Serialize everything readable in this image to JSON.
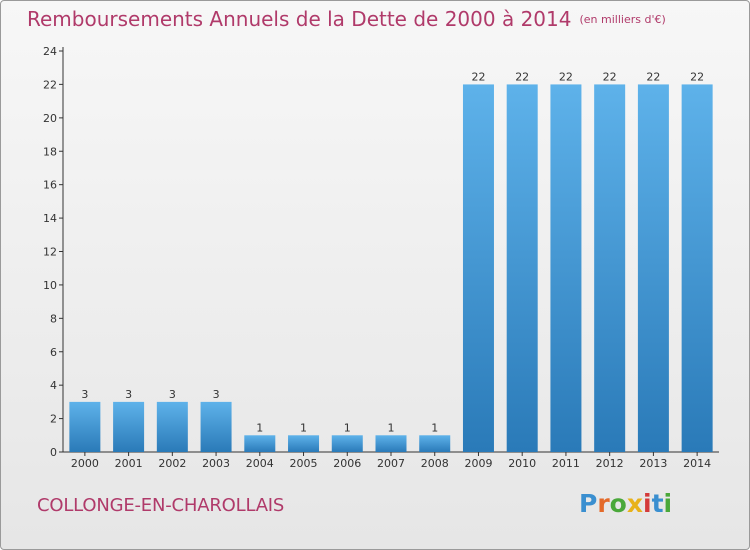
{
  "header": {
    "title": "Remboursements Annuels de la Dette de 2000 à 2014",
    "unit": "(en milliers d'€)"
  },
  "footer": {
    "commune": "COLLONGE-EN-CHAROLLAIS",
    "logo_text": "Proxiti"
  },
  "colors": {
    "title": "#b03a6a",
    "bar_light": "#5eb2ea",
    "bar_dark": "#2a7ab8",
    "logo_letters": [
      "#3a8fd0",
      "#e46a2a",
      "#4aa83a",
      "#e8b21a",
      "#d43a3a",
      "#3a8fd0",
      "#4aa83a"
    ]
  },
  "chart_data": {
    "type": "bar",
    "title": "Remboursements Annuels de la Dette de 2000 à 2014",
    "categories": [
      "2000",
      "2001",
      "2002",
      "2003",
      "2004",
      "2005",
      "2006",
      "2007",
      "2008",
      "2009",
      "2010",
      "2011",
      "2012",
      "2013",
      "2014"
    ],
    "values": [
      3,
      3,
      3,
      3,
      1,
      1,
      1,
      1,
      1,
      22,
      22,
      22,
      22,
      22,
      22
    ],
    "ylim": [
      0,
      24
    ],
    "yticks": [
      0,
      2,
      4,
      6,
      8,
      10,
      12,
      14,
      16,
      18,
      20,
      22,
      24
    ],
    "grid": false,
    "legend": "none"
  }
}
